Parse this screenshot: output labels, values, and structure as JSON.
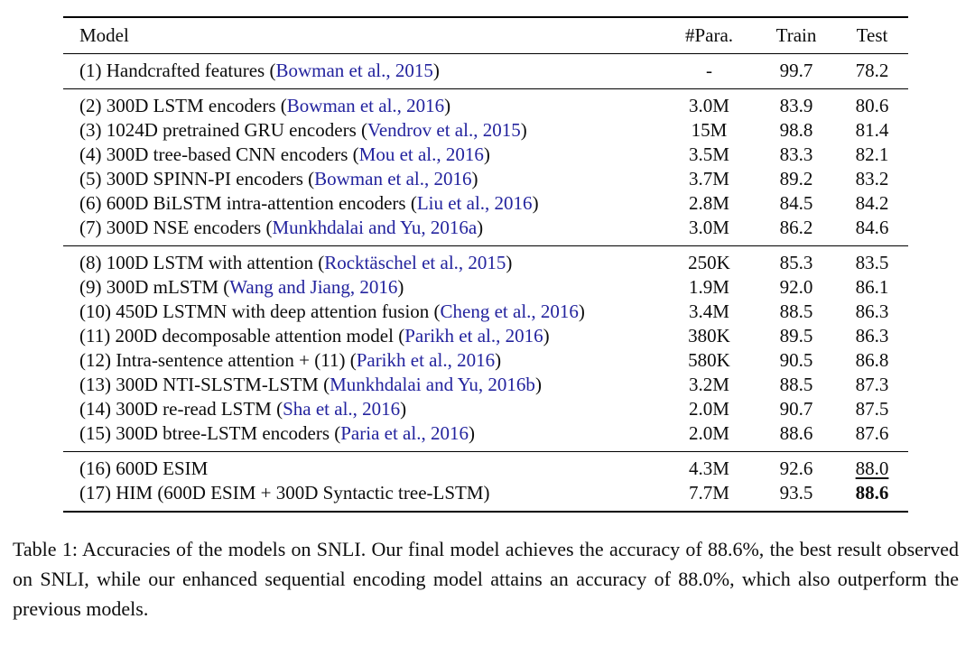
{
  "colors": {
    "citation_blue": "#23239e",
    "rule": "#000000",
    "text": "#0d0d0d",
    "background": "#ffffff"
  },
  "table": {
    "columns": [
      "Model",
      "#Para.",
      "Train",
      "Test"
    ],
    "groups": [
      {
        "rows": [
          {
            "prefix": "(1) Handcrafted features (",
            "citation": "Bowman et al., 2015",
            "suffix": ")",
            "para": "-",
            "train": "99.7",
            "test": "78.2"
          }
        ]
      },
      {
        "rows": [
          {
            "prefix": "(2) 300D LSTM encoders (",
            "citation": "Bowman et al., 2016",
            "suffix": ")",
            "para": "3.0M",
            "train": "83.9",
            "test": "80.6"
          },
          {
            "prefix": "(3) 1024D pretrained GRU encoders (",
            "citation": "Vendrov et al., 2015",
            "suffix": ")",
            "para": "15M",
            "train": "98.8",
            "test": "81.4"
          },
          {
            "prefix": "(4) 300D tree-based CNN encoders (",
            "citation": "Mou et al., 2016",
            "suffix": ")",
            "para": "3.5M",
            "train": "83.3",
            "test": "82.1"
          },
          {
            "prefix": "(5) 300D SPINN-PI encoders (",
            "citation": "Bowman et al., 2016",
            "suffix": ")",
            "para": "3.7M",
            "train": "89.2",
            "test": "83.2"
          },
          {
            "prefix": "(6) 600D BiLSTM intra-attention encoders (",
            "citation": "Liu et al., 2016",
            "suffix": ")",
            "para": "2.8M",
            "train": "84.5",
            "test": "84.2"
          },
          {
            "prefix": "(7) 300D NSE encoders (",
            "citation": "Munkhdalai and Yu, 2016a",
            "suffix": ")",
            "para": "3.0M",
            "train": "86.2",
            "test": "84.6"
          }
        ]
      },
      {
        "rows": [
          {
            "prefix": "(8) 100D LSTM with attention (",
            "citation": "Rocktäschel et al., 2015",
            "suffix": ")",
            "para": "250K",
            "train": "85.3",
            "test": "83.5"
          },
          {
            "prefix": "(9) 300D mLSTM (",
            "citation": "Wang and Jiang, 2016",
            "suffix": ")",
            "para": "1.9M",
            "train": "92.0",
            "test": "86.1"
          },
          {
            "prefix": "(10) 450D LSTMN with deep attention fusion (",
            "citation": "Cheng et al., 2016",
            "suffix": ")",
            "para": "3.4M",
            "train": "88.5",
            "test": "86.3"
          },
          {
            "prefix": "(11) 200D decomposable attention model (",
            "citation": "Parikh et al., 2016",
            "suffix": ")",
            "para": "380K",
            "train": "89.5",
            "test": "86.3"
          },
          {
            "prefix": "(12) Intra-sentence attention + (11) (",
            "citation": "Parikh et al., 2016",
            "suffix": ")",
            "para": "580K",
            "train": "90.5",
            "test": "86.8"
          },
          {
            "prefix": "(13) 300D NTI-SLSTM-LSTM (",
            "citation": "Munkhdalai and Yu, 2016b",
            "suffix": ")",
            "para": "3.2M",
            "train": "88.5",
            "test": "87.3"
          },
          {
            "prefix": "(14) 300D re-read LSTM (",
            "citation": "Sha et al., 2016",
            "suffix": ")",
            "para": "2.0M",
            "train": "90.7",
            "test": "87.5"
          },
          {
            "prefix": "(15) 300D btree-LSTM encoders (",
            "citation": "Paria et al., 2016",
            "suffix": ")",
            "para": "2.0M",
            "train": "88.6",
            "test": "87.6"
          }
        ]
      },
      {
        "rows": [
          {
            "prefix": "(16) 600D ESIM",
            "citation": "",
            "suffix": "",
            "para": "4.3M",
            "train": "92.6",
            "test": "88.0",
            "test_underline": true
          },
          {
            "prefix": "(17) HIM (600D ESIM + 300D Syntactic tree-LSTM)",
            "citation": "",
            "suffix": "",
            "para": "7.7M",
            "train": "93.5",
            "test": "88.6",
            "test_bold": true
          }
        ]
      }
    ]
  },
  "caption": {
    "text": "Table 1: Accuracies of the models on SNLI. Our final model achieves the accuracy of 88.6%, the best result observed on SNLI, while our enhanced sequential encoding model attains an accuracy of 88.0%, which also outperform the previous models."
  }
}
